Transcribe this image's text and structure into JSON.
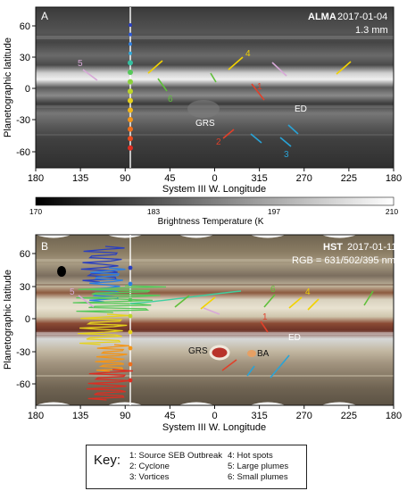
{
  "panelA": {
    "letter": "A",
    "instrument": "ALMA",
    "date": "2017-01-04",
    "wavelength": "1.3 mm",
    "ylabel": "Planetographic latitude",
    "xlabel": "System III  W. Longitude",
    "yticks": [
      "60",
      "30",
      "0",
      "-30",
      "-60"
    ],
    "xticks": [
      "180",
      "135",
      "90",
      "45",
      "0",
      "315",
      "270",
      "225",
      "180"
    ],
    "labels": {
      "grs": "GRS",
      "ed": "ED"
    },
    "arrow_numbers": [
      "5",
      "6",
      "4",
      "1",
      "2",
      "3"
    ]
  },
  "colorbar": {
    "ticks": [
      "170",
      "183",
      "197",
      "210"
    ],
    "label": "Brightness Temperature (K"
  },
  "panelB": {
    "letter": "B",
    "instrument": "HST",
    "date": "2017-01-11",
    "rgb": "RGB = 631/502/395 nm",
    "ylabel": "Planetographic latitude",
    "xlabel": "System III  W. Longitude",
    "yticks": [
      "60",
      "30",
      "0",
      "-30",
      "-60"
    ],
    "xticks": [
      "180",
      "135",
      "90",
      "45",
      "0",
      "315",
      "270",
      "225",
      "180"
    ],
    "labels": {
      "grs": "GRS",
      "ba": "BA",
      "ed": "ED"
    },
    "arrow_numbers": [
      "5",
      "6",
      "4",
      "1"
    ]
  },
  "key": {
    "title": "Key:",
    "items": [
      "1: Source SEB Outbreak",
      "2: Cyclone",
      "3: Vortices",
      "4: Hot spots",
      "5: Large plumes",
      "6: Small plumes"
    ]
  },
  "colors": {
    "cyclone": "#e0402a",
    "hotspot": "#f2d200",
    "plume_small": "#5fbf3a",
    "plume_large": "#d8a8d8",
    "vortex": "#29a3d6",
    "outbreak": "#d83a2a"
  }
}
